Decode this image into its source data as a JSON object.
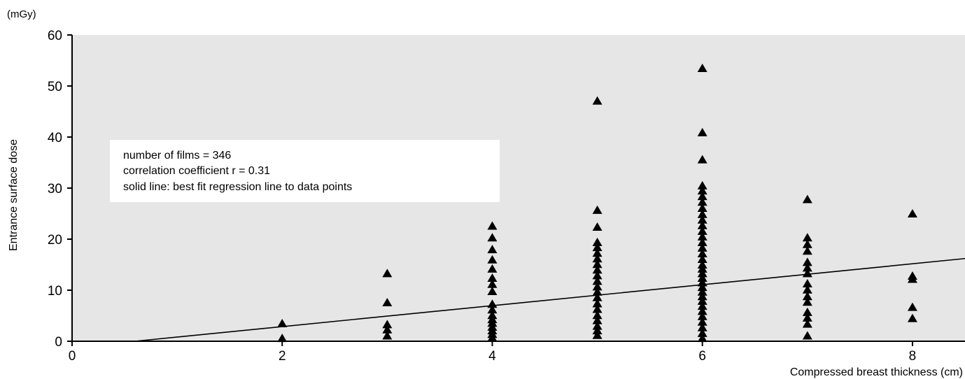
{
  "chart_data": {
    "type": "scatter",
    "title": "",
    "xlabel": "Compressed breast thickness (cm)",
    "ylabel": "Entrance surface dose",
    "yunit": "(mGy)",
    "xlim": [
      0,
      8.5
    ],
    "ylim": [
      0,
      60
    ],
    "xticks": [
      0,
      2,
      4,
      6,
      8
    ],
    "yticks": [
      0,
      10,
      20,
      30,
      40,
      50,
      60
    ],
    "grid": false,
    "background_color": "#e6e6e6",
    "marker_color": "#000000",
    "marker": "triangle",
    "annotations": [
      "number of films = 346",
      "correlation coefficient r = 0.31",
      "solid line: best fit regression line to data points"
    ],
    "regression_line": {
      "x": [
        0.6,
        8.5
      ],
      "y": [
        0,
        16.2
      ]
    },
    "points": [
      [
        2,
        3.5
      ],
      [
        2,
        0.6
      ],
      [
        3,
        13.3
      ],
      [
        3,
        7.6
      ],
      [
        3,
        3.3
      ],
      [
        3,
        2.3
      ],
      [
        3,
        1.1
      ],
      [
        4,
        22.6
      ],
      [
        4,
        20.3
      ],
      [
        4,
        18.0
      ],
      [
        4,
        16.0
      ],
      [
        4,
        14.2
      ],
      [
        4,
        12.4
      ],
      [
        4,
        11.2
      ],
      [
        4,
        9.8
      ],
      [
        4,
        7.3
      ],
      [
        4,
        6.2
      ],
      [
        4,
        5.1
      ],
      [
        4,
        4.3
      ],
      [
        4,
        3.6
      ],
      [
        4,
        2.8
      ],
      [
        4,
        2.1
      ],
      [
        4,
        1.4
      ],
      [
        4,
        0.7
      ],
      [
        5,
        47.1
      ],
      [
        5,
        25.7
      ],
      [
        5,
        22.4
      ],
      [
        5,
        19.4
      ],
      [
        5,
        18.4
      ],
      [
        5,
        17.3
      ],
      [
        5,
        16.2
      ],
      [
        5,
        15.1
      ],
      [
        5,
        14.0
      ],
      [
        5,
        12.9
      ],
      [
        5,
        11.8
      ],
      [
        5,
        10.7
      ],
      [
        5,
        9.7
      ],
      [
        5,
        8.6
      ],
      [
        5,
        7.4
      ],
      [
        5,
        6.3
      ],
      [
        5,
        5.1
      ],
      [
        5,
        4.1
      ],
      [
        5,
        3.0
      ],
      [
        5,
        2.1
      ],
      [
        5,
        1.2
      ],
      [
        6,
        53.5
      ],
      [
        6,
        40.9
      ],
      [
        6,
        35.6
      ],
      [
        6,
        30.5
      ],
      [
        6,
        29.5
      ],
      [
        6,
        28.4
      ],
      [
        6,
        27.3
      ],
      [
        6,
        26.1
      ],
      [
        6,
        24.9
      ],
      [
        6,
        23.8
      ],
      [
        6,
        22.7
      ],
      [
        6,
        21.6
      ],
      [
        6,
        20.5
      ],
      [
        6,
        19.4
      ],
      [
        6,
        18.3
      ],
      [
        6,
        17.2
      ],
      [
        6,
        16.1
      ],
      [
        6,
        15.0
      ],
      [
        6,
        14.2
      ],
      [
        6,
        13.3
      ],
      [
        6,
        12.4
      ],
      [
        6,
        11.5
      ],
      [
        6,
        10.6
      ],
      [
        6,
        9.7
      ],
      [
        6,
        8.8
      ],
      [
        6,
        7.9
      ],
      [
        6,
        6.9
      ],
      [
        6,
        5.9
      ],
      [
        6,
        4.9
      ],
      [
        6,
        3.8
      ],
      [
        6,
        2.7
      ],
      [
        6,
        1.6
      ],
      [
        6,
        0.6
      ],
      [
        7,
        27.8
      ],
      [
        7,
        20.3
      ],
      [
        7,
        19.0
      ],
      [
        7,
        17.7
      ],
      [
        7,
        15.5
      ],
      [
        7,
        14.4
      ],
      [
        7,
        13.3
      ],
      [
        7,
        11.3
      ],
      [
        7,
        10.1
      ],
      [
        7,
        8.8
      ],
      [
        7,
        7.7
      ],
      [
        7,
        5.7
      ],
      [
        7,
        4.6
      ],
      [
        7,
        3.4
      ],
      [
        7,
        1.1
      ],
      [
        8,
        25.0
      ],
      [
        8,
        12.8
      ],
      [
        8,
        12.2
      ],
      [
        8,
        6.7
      ],
      [
        8,
        4.5
      ]
    ]
  }
}
